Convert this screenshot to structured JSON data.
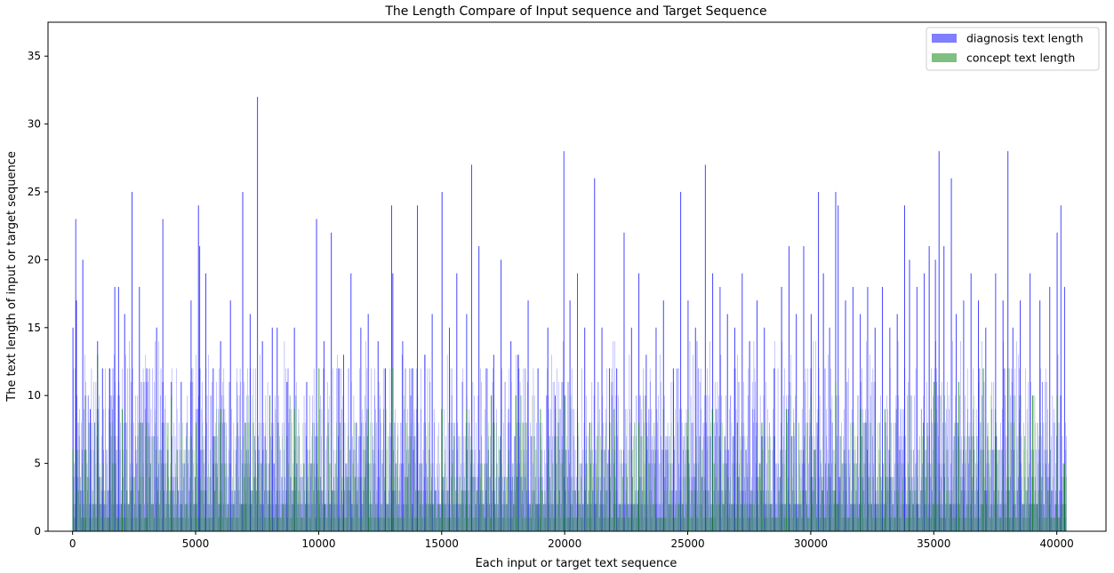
{
  "chart_data": {
    "type": "bar",
    "title": "The Length Compare of Input sequence and Target Sequence",
    "xlabel": "Each input or target text sequence",
    "ylabel": "The text length of input or target sequence",
    "xlim": [
      -1000,
      42000
    ],
    "ylim": [
      0,
      37.5
    ],
    "xticks": [
      0,
      5000,
      10000,
      15000,
      20000,
      25000,
      30000,
      35000,
      40000
    ],
    "yticks": [
      0,
      5,
      10,
      15,
      20,
      25,
      30,
      35
    ],
    "grid": false,
    "legend_position": "top-right",
    "x_count": 40400,
    "series": [
      {
        "name": "diagnosis text length",
        "color": "#0000ff",
        "alpha": 0.5,
        "peaks": [
          {
            "x": 0,
            "y": 15
          },
          {
            "x": 110,
            "y": 23
          },
          {
            "x": 140,
            "y": 17
          },
          {
            "x": 400,
            "y": 20
          },
          {
            "x": 700,
            "y": 9
          },
          {
            "x": 1000,
            "y": 14
          },
          {
            "x": 1200,
            "y": 12
          },
          {
            "x": 1500,
            "y": 12
          },
          {
            "x": 1700,
            "y": 18
          },
          {
            "x": 1850,
            "y": 18
          },
          {
            "x": 2100,
            "y": 16
          },
          {
            "x": 2400,
            "y": 25
          },
          {
            "x": 2700,
            "y": 18
          },
          {
            "x": 3000,
            "y": 12
          },
          {
            "x": 3400,
            "y": 15
          },
          {
            "x": 3650,
            "y": 23
          },
          {
            "x": 4000,
            "y": 11
          },
          {
            "x": 4400,
            "y": 11
          },
          {
            "x": 4800,
            "y": 17
          },
          {
            "x": 5100,
            "y": 24
          },
          {
            "x": 5150,
            "y": 21
          },
          {
            "x": 5400,
            "y": 19
          },
          {
            "x": 5700,
            "y": 12
          },
          {
            "x": 6000,
            "y": 14
          },
          {
            "x": 6400,
            "y": 17
          },
          {
            "x": 6900,
            "y": 25
          },
          {
            "x": 7200,
            "y": 16
          },
          {
            "x": 7500,
            "y": 32
          },
          {
            "x": 7700,
            "y": 14
          },
          {
            "x": 8100,
            "y": 15
          },
          {
            "x": 8300,
            "y": 15
          },
          {
            "x": 8700,
            "y": 11
          },
          {
            "x": 9000,
            "y": 15
          },
          {
            "x": 9500,
            "y": 11
          },
          {
            "x": 9900,
            "y": 23
          },
          {
            "x": 10200,
            "y": 14
          },
          {
            "x": 10500,
            "y": 22
          },
          {
            "x": 10800,
            "y": 12
          },
          {
            "x": 11000,
            "y": 13
          },
          {
            "x": 11300,
            "y": 19
          },
          {
            "x": 11700,
            "y": 15
          },
          {
            "x": 12000,
            "y": 16
          },
          {
            "x": 12400,
            "y": 14
          },
          {
            "x": 12700,
            "y": 12
          },
          {
            "x": 12950,
            "y": 24
          },
          {
            "x": 13000,
            "y": 19
          },
          {
            "x": 13400,
            "y": 14
          },
          {
            "x": 13800,
            "y": 12
          },
          {
            "x": 14000,
            "y": 24
          },
          {
            "x": 14300,
            "y": 13
          },
          {
            "x": 14600,
            "y": 16
          },
          {
            "x": 15000,
            "y": 25
          },
          {
            "x": 15300,
            "y": 15
          },
          {
            "x": 15600,
            "y": 19
          },
          {
            "x": 16000,
            "y": 16
          },
          {
            "x": 16200,
            "y": 27
          },
          {
            "x": 16500,
            "y": 21
          },
          {
            "x": 16800,
            "y": 12
          },
          {
            "x": 17100,
            "y": 13
          },
          {
            "x": 17400,
            "y": 20
          },
          {
            "x": 17800,
            "y": 14
          },
          {
            "x": 18100,
            "y": 13
          },
          {
            "x": 18500,
            "y": 17
          },
          {
            "x": 18900,
            "y": 12
          },
          {
            "x": 19300,
            "y": 15
          },
          {
            "x": 19600,
            "y": 10
          },
          {
            "x": 19950,
            "y": 28
          },
          {
            "x": 20200,
            "y": 17
          },
          {
            "x": 20500,
            "y": 19
          },
          {
            "x": 20800,
            "y": 15
          },
          {
            "x": 21200,
            "y": 26
          },
          {
            "x": 21500,
            "y": 15
          },
          {
            "x": 21800,
            "y": 12
          },
          {
            "x": 22100,
            "y": 12
          },
          {
            "x": 22400,
            "y": 22
          },
          {
            "x": 22700,
            "y": 15
          },
          {
            "x": 23000,
            "y": 19
          },
          {
            "x": 23300,
            "y": 13
          },
          {
            "x": 23700,
            "y": 15
          },
          {
            "x": 24000,
            "y": 17
          },
          {
            "x": 24400,
            "y": 12
          },
          {
            "x": 24700,
            "y": 25
          },
          {
            "x": 25000,
            "y": 17
          },
          {
            "x": 25300,
            "y": 15
          },
          {
            "x": 25700,
            "y": 27
          },
          {
            "x": 26000,
            "y": 19
          },
          {
            "x": 26300,
            "y": 18
          },
          {
            "x": 26600,
            "y": 16
          },
          {
            "x": 26900,
            "y": 15
          },
          {
            "x": 27200,
            "y": 19
          },
          {
            "x": 27500,
            "y": 14
          },
          {
            "x": 27800,
            "y": 17
          },
          {
            "x": 28100,
            "y": 15
          },
          {
            "x": 28500,
            "y": 12
          },
          {
            "x": 28800,
            "y": 18
          },
          {
            "x": 29100,
            "y": 21
          },
          {
            "x": 29400,
            "y": 16
          },
          {
            "x": 29700,
            "y": 21
          },
          {
            "x": 30000,
            "y": 16
          },
          {
            "x": 30300,
            "y": 25
          },
          {
            "x": 30500,
            "y": 19
          },
          {
            "x": 30750,
            "y": 15
          },
          {
            "x": 31000,
            "y": 25
          },
          {
            "x": 31100,
            "y": 24
          },
          {
            "x": 31400,
            "y": 17
          },
          {
            "x": 31700,
            "y": 18
          },
          {
            "x": 32000,
            "y": 16
          },
          {
            "x": 32300,
            "y": 18
          },
          {
            "x": 32600,
            "y": 15
          },
          {
            "x": 32900,
            "y": 18
          },
          {
            "x": 33200,
            "y": 15
          },
          {
            "x": 33500,
            "y": 16
          },
          {
            "x": 33800,
            "y": 24
          },
          {
            "x": 34000,
            "y": 20
          },
          {
            "x": 34300,
            "y": 18
          },
          {
            "x": 34600,
            "y": 19
          },
          {
            "x": 34800,
            "y": 21
          },
          {
            "x": 35050,
            "y": 20
          },
          {
            "x": 35200,
            "y": 28
          },
          {
            "x": 35400,
            "y": 21
          },
          {
            "x": 35700,
            "y": 26
          },
          {
            "x": 35900,
            "y": 16
          },
          {
            "x": 36200,
            "y": 17
          },
          {
            "x": 36500,
            "y": 19
          },
          {
            "x": 36800,
            "y": 17
          },
          {
            "x": 37100,
            "y": 15
          },
          {
            "x": 37500,
            "y": 19
          },
          {
            "x": 37800,
            "y": 17
          },
          {
            "x": 38000,
            "y": 28
          },
          {
            "x": 38200,
            "y": 15
          },
          {
            "x": 38500,
            "y": 17
          },
          {
            "x": 38900,
            "y": 19
          },
          {
            "x": 39300,
            "y": 17
          },
          {
            "x": 39700,
            "y": 18
          },
          {
            "x": 40000,
            "y": 22
          },
          {
            "x": 40150,
            "y": 24
          },
          {
            "x": 40300,
            "y": 18
          }
        ]
      },
      {
        "name": "concept text length",
        "color": "#008000",
        "alpha": 0.5,
        "peaks": [
          {
            "x": 0,
            "y": 6
          },
          {
            "x": 500,
            "y": 6
          },
          {
            "x": 1000,
            "y": 13
          },
          {
            "x": 2000,
            "y": 9
          },
          {
            "x": 3000,
            "y": 8
          },
          {
            "x": 4000,
            "y": 10
          },
          {
            "x": 5000,
            "y": 8
          },
          {
            "x": 6000,
            "y": 9
          },
          {
            "x": 7000,
            "y": 8
          },
          {
            "x": 8000,
            "y": 10
          },
          {
            "x": 9000,
            "y": 9
          },
          {
            "x": 10000,
            "y": 12
          },
          {
            "x": 11000,
            "y": 8
          },
          {
            "x": 12000,
            "y": 9
          },
          {
            "x": 13000,
            "y": 12
          },
          {
            "x": 14000,
            "y": 12
          },
          {
            "x": 15000,
            "y": 9
          },
          {
            "x": 16000,
            "y": 9
          },
          {
            "x": 17000,
            "y": 10
          },
          {
            "x": 18000,
            "y": 10
          },
          {
            "x": 19000,
            "y": 9
          },
          {
            "x": 20000,
            "y": 10
          },
          {
            "x": 21000,
            "y": 8
          },
          {
            "x": 22000,
            "y": 9
          },
          {
            "x": 23000,
            "y": 8
          },
          {
            "x": 24000,
            "y": 9
          },
          {
            "x": 25000,
            "y": 9
          },
          {
            "x": 26000,
            "y": 9
          },
          {
            "x": 27000,
            "y": 8
          },
          {
            "x": 28000,
            "y": 8
          },
          {
            "x": 29000,
            "y": 9
          },
          {
            "x": 30000,
            "y": 10
          },
          {
            "x": 31000,
            "y": 11
          },
          {
            "x": 32000,
            "y": 9
          },
          {
            "x": 33000,
            "y": 9
          },
          {
            "x": 34000,
            "y": 10
          },
          {
            "x": 35000,
            "y": 11
          },
          {
            "x": 36000,
            "y": 11
          },
          {
            "x": 37000,
            "y": 12
          },
          {
            "x": 38000,
            "y": 12
          },
          {
            "x": 39000,
            "y": 10
          },
          {
            "x": 40000,
            "y": 10
          },
          {
            "x": 40300,
            "y": 5
          }
        ]
      }
    ]
  }
}
